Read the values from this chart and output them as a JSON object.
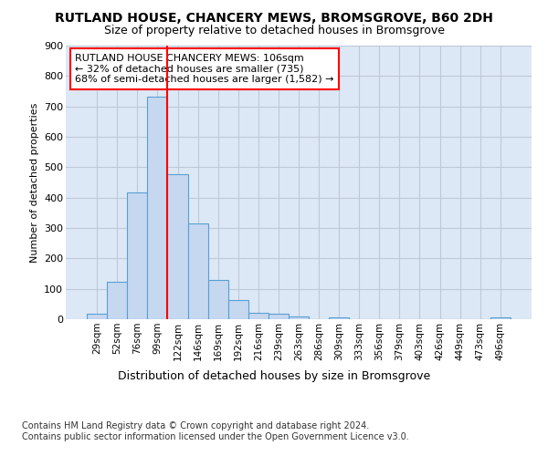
{
  "title": "RUTLAND HOUSE, CHANCERY MEWS, BROMSGROVE, B60 2DH",
  "subtitle": "Size of property relative to detached houses in Bromsgrove",
  "xlabel": "Distribution of detached houses by size in Bromsgrove",
  "ylabel": "Number of detached properties",
  "categories": [
    "29sqm",
    "52sqm",
    "76sqm",
    "99sqm",
    "122sqm",
    "146sqm",
    "169sqm",
    "192sqm",
    "216sqm",
    "239sqm",
    "263sqm",
    "286sqm",
    "309sqm",
    "333sqm",
    "356sqm",
    "379sqm",
    "403sqm",
    "426sqm",
    "449sqm",
    "473sqm",
    "496sqm"
  ],
  "bar_heights": [
    17,
    122,
    418,
    733,
    478,
    315,
    130,
    63,
    22,
    17,
    9,
    0,
    7,
    0,
    0,
    0,
    0,
    0,
    0,
    0,
    7
  ],
  "bar_color": "#c5d8f0",
  "bar_edge_color": "#5a9fd4",
  "vline_x": 3.5,
  "vline_color": "red",
  "annotation_box_text": "RUTLAND HOUSE CHANCERY MEWS: 106sqm\n← 32% of detached houses are smaller (735)\n68% of semi-detached houses are larger (1,582) →",
  "ylim": [
    0,
    900
  ],
  "yticks": [
    0,
    100,
    200,
    300,
    400,
    500,
    600,
    700,
    800,
    900
  ],
  "grid_color": "#c0c8d8",
  "background_color": "#dce8f5",
  "footer": "Contains HM Land Registry data © Crown copyright and database right 2024.\nContains public sector information licensed under the Open Government Licence v3.0.",
  "title_fontsize": 10,
  "subtitle_fontsize": 9,
  "xlabel_fontsize": 9,
  "ylabel_fontsize": 8,
  "annotation_fontsize": 8
}
